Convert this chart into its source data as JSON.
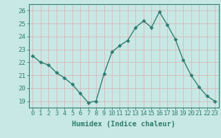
{
  "x": [
    0,
    1,
    2,
    3,
    4,
    5,
    6,
    7,
    8,
    9,
    10,
    11,
    12,
    13,
    14,
    15,
    16,
    17,
    18,
    19,
    20,
    21,
    22,
    23
  ],
  "y": [
    22.5,
    22.0,
    21.8,
    21.2,
    20.8,
    20.3,
    19.6,
    18.9,
    19.0,
    21.1,
    22.8,
    23.3,
    23.7,
    24.7,
    25.2,
    24.7,
    25.9,
    24.9,
    23.8,
    22.2,
    21.0,
    20.1,
    19.4,
    19.0
  ],
  "line_color": "#2e7d6e",
  "marker": "D",
  "marker_size": 2.5,
  "bg_color": "#c8e8e5",
  "grid_color": "#d8b8b8",
  "axis_color": "#2e7d6e",
  "tick_color": "#2e7d6e",
  "xlabel": "Humidex (Indice chaleur)",
  "ylim": [
    18.5,
    26.5
  ],
  "xlim": [
    -0.5,
    23.5
  ],
  "yticks": [
    19,
    20,
    21,
    22,
    23,
    24,
    25,
    26
  ],
  "xticks": [
    0,
    1,
    2,
    3,
    4,
    5,
    6,
    7,
    8,
    9,
    10,
    11,
    12,
    13,
    14,
    15,
    16,
    17,
    18,
    19,
    20,
    21,
    22,
    23
  ],
  "font_size": 6.5,
  "label_font_size": 7.5
}
